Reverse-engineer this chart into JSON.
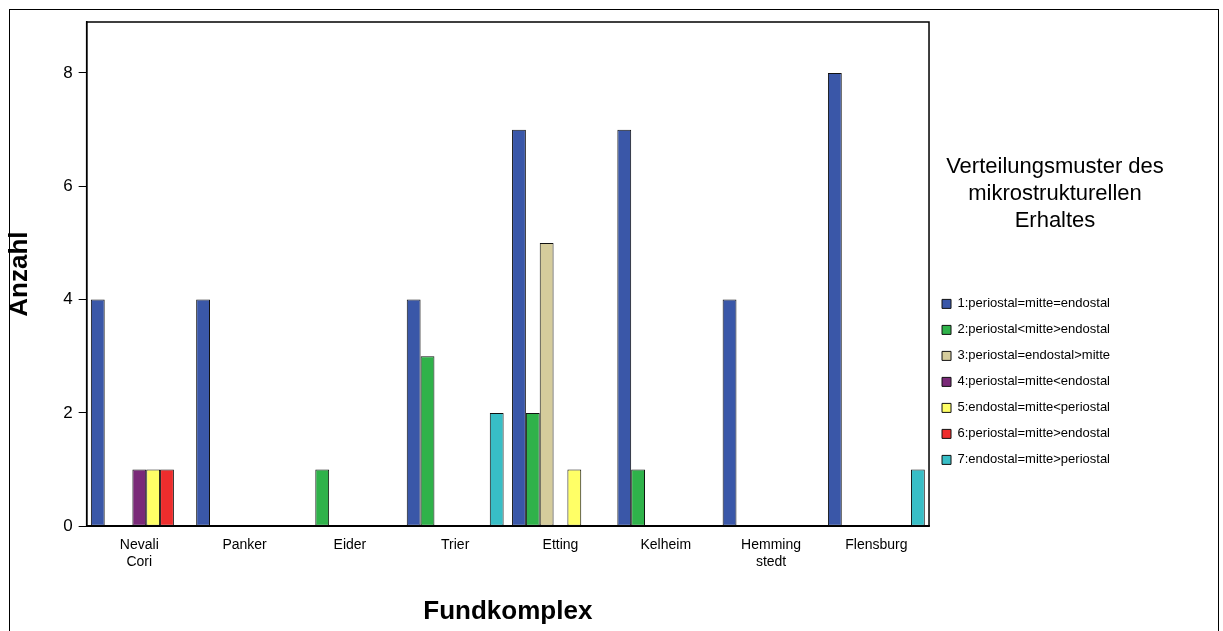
{
  "chart_data": {
    "type": "bar",
    "xlabel": "Fundkomplex",
    "ylabel": "Anzahl",
    "legend_title": "Verteilungsmuster des mikrostrukturellen Erhaltes",
    "legend": "right",
    "grid": false,
    "categories": [
      "Nevali\nCori",
      "Panker",
      "Eider",
      "Trier",
      "Etting",
      "Kelheim",
      "Hemming\nstedt",
      "Flensburg"
    ],
    "ylim": [
      0,
      8.9
    ],
    "yticks": [
      0,
      2,
      4,
      6,
      8
    ],
    "series": [
      {
        "name": "1:periostal=mitte=endostal",
        "color": "#3a57a8",
        "values": [
          4,
          4,
          null,
          4,
          7,
          7,
          4,
          8
        ]
      },
      {
        "name": "2:periostal<mitte>endostal",
        "color": "#2fb24a",
        "values": [
          null,
          null,
          1,
          3,
          2,
          1,
          null,
          null
        ]
      },
      {
        "name": "3:periostal=endostal>mitte",
        "color": "#d5cc9c",
        "values": [
          null,
          null,
          null,
          null,
          5,
          null,
          null,
          null
        ]
      },
      {
        "name": "4:periostal=mitte<endostal",
        "color": "#7a2a78",
        "values": [
          1,
          null,
          null,
          null,
          null,
          null,
          null,
          null
        ]
      },
      {
        "name": "5:endostal=mitte<periostal",
        "color": "#ffff66",
        "values": [
          1,
          null,
          null,
          null,
          1,
          null,
          null,
          null
        ]
      },
      {
        "name": "6:periostal=mitte>endostal",
        "color": "#ee2d2d",
        "values": [
          1,
          null,
          null,
          null,
          null,
          null,
          null,
          null
        ]
      },
      {
        "name": "7:endostal=mitte>periostal",
        "color": "#38bec6",
        "values": [
          null,
          null,
          null,
          2,
          null,
          null,
          null,
          1
        ]
      }
    ]
  }
}
